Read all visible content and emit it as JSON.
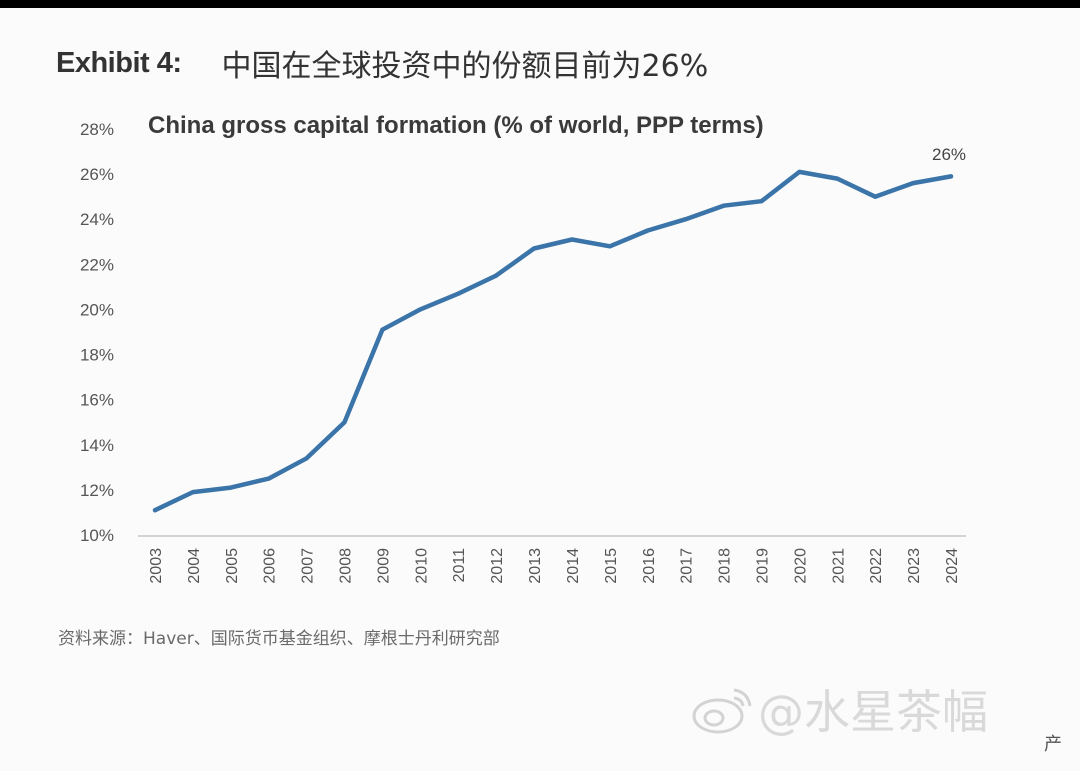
{
  "header": {
    "exhibit_label": "Exhibit 4:",
    "title": "中国在全球投资中的份额目前为26%"
  },
  "chart_data": {
    "type": "line",
    "title": "China gross capital formation (% of world, PPP terms)",
    "xlabel": "",
    "ylabel": "",
    "ylim": [
      10,
      28
    ],
    "y_ticks": [
      "10%",
      "12%",
      "14%",
      "16%",
      "18%",
      "20%",
      "22%",
      "24%",
      "26%",
      "28%"
    ],
    "grid": false,
    "x": [
      "2003",
      "2004",
      "2005",
      "2006",
      "2007",
      "2008",
      "2009",
      "2010",
      "2011",
      "2012",
      "2013",
      "2014",
      "2015",
      "2016",
      "2017",
      "2018",
      "2019",
      "2020",
      "2021",
      "2022",
      "2023",
      "2024"
    ],
    "series": [
      {
        "values": [
          11.1,
          11.9,
          12.1,
          12.5,
          13.4,
          15.0,
          19.1,
          20.0,
          20.7,
          21.5,
          22.7,
          23.1,
          22.8,
          23.5,
          24.0,
          24.6,
          24.8,
          26.1,
          25.8,
          25.0,
          25.6,
          25.9
        ],
        "color": "#3a74a8"
      }
    ],
    "annotations": [
      {
        "text": "26%",
        "x": "2024",
        "y": 26
      }
    ]
  },
  "footer": {
    "source": "资料来源：Haver、国际货币基金组织、摩根士丹利研究部"
  },
  "watermark": {
    "text": "@水星茶幅",
    "icon": "weibo-logo"
  },
  "corner_text": "产"
}
